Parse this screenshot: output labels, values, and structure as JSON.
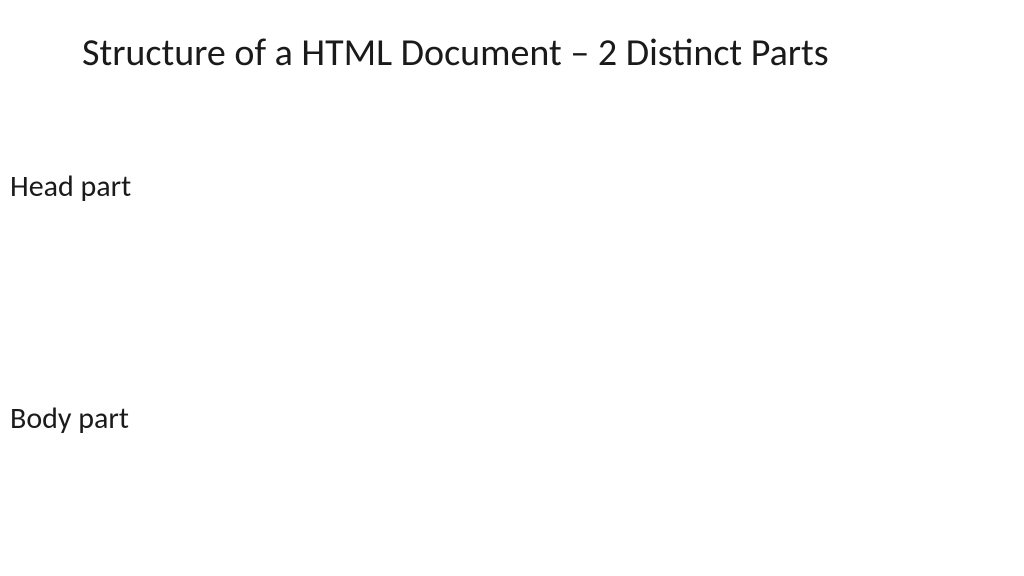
{
  "slide": {
    "title": "Structure of a HTML Document – 2 Distinct Parts",
    "sections": {
      "head": "Head part",
      "body": "Body part"
    }
  },
  "styling": {
    "background_color": "#ffffff",
    "title_color": "#1a1a1a",
    "text_color": "#1a1a1a",
    "title_fontsize": 38,
    "section_fontsize": 30,
    "font_family": "Calibri",
    "font_weight": 400
  }
}
